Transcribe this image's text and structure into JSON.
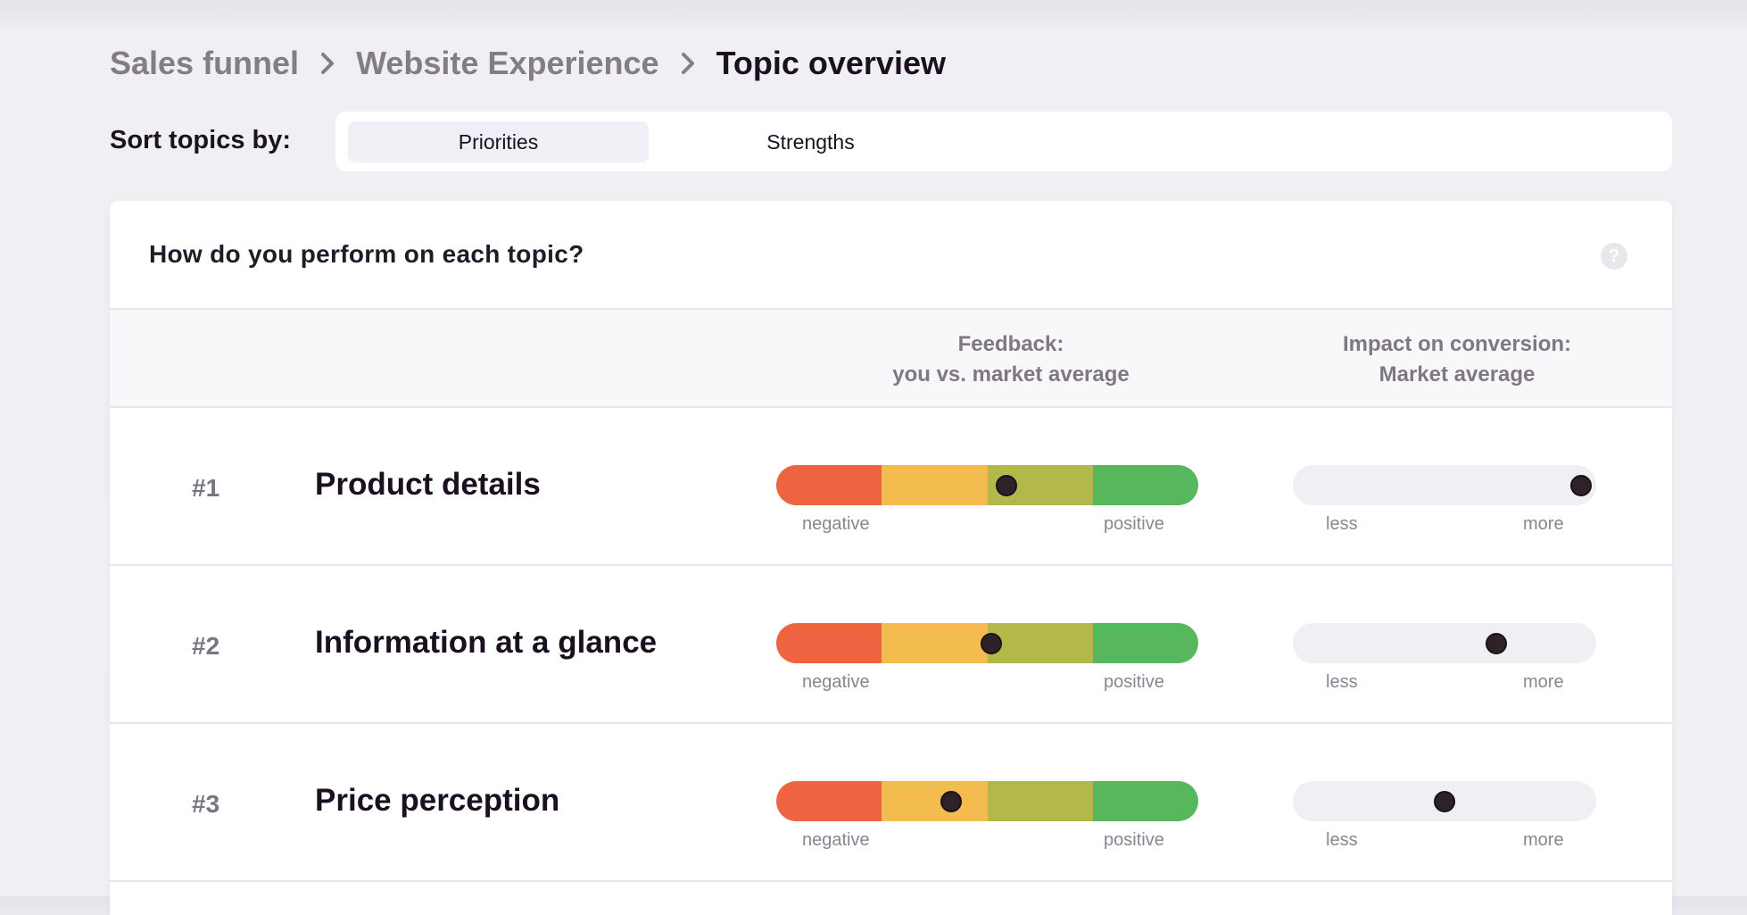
{
  "breadcrumb": {
    "items": [
      "Sales funnel",
      "Website Experience"
    ],
    "current": "Topic overview"
  },
  "sort": {
    "label": "Sort topics by:",
    "options": [
      "Priorities",
      "Strengths"
    ],
    "selected": "Priorities"
  },
  "card": {
    "title": "How do you perform on each topic?",
    "help_icon": "question-circle-icon",
    "col_feedback_line1": "Feedback:",
    "col_feedback_line2": "you vs. market average",
    "col_impact_line1": "Impact on conversion:",
    "col_impact_line2": "Market average"
  },
  "scale_labels": {
    "feedback_low": "negative",
    "feedback_high": "positive",
    "impact_low": "less",
    "impact_high": "more"
  },
  "colors": {
    "feedback_segments": [
      "#ee6340",
      "#f4bb4e",
      "#b3b84a",
      "#57b75c"
    ]
  },
  "topics": [
    {
      "rank": "#1",
      "name": "Product details",
      "feedback": 0.545,
      "impact": 0.95
    },
    {
      "rank": "#2",
      "name": "Information at a glance",
      "feedback": 0.51,
      "impact": 0.67
    },
    {
      "rank": "#3",
      "name": "Price perception",
      "feedback": 0.415,
      "impact": 0.5
    }
  ]
}
